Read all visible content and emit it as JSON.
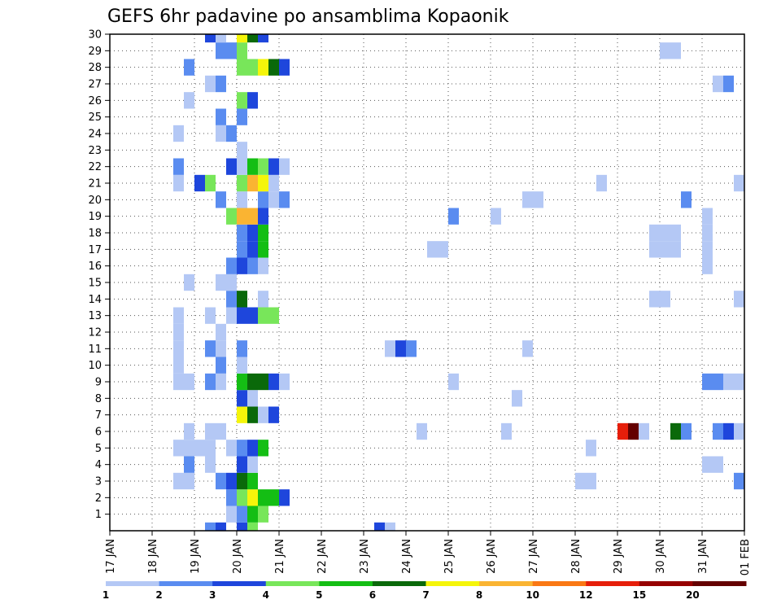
{
  "chart_data": {
    "type": "heatmap",
    "title": "GEFS 6hr padavine po ansamblima Kopaonik",
    "xlabel": "",
    "ylabel": "",
    "x_unit": "6-hour steps",
    "x_range": [
      0,
      60
    ],
    "x_ticks": [
      {
        "label": "17 JAN",
        "x": 0
      },
      {
        "label": "18 JAN",
        "x": 4
      },
      {
        "label": "19 JAN",
        "x": 8
      },
      {
        "label": "20 JAN",
        "x": 12
      },
      {
        "label": "21 JAN",
        "x": 16
      },
      {
        "label": "22 JAN",
        "x": 20
      },
      {
        "label": "23 JAN",
        "x": 24
      },
      {
        "label": "24 JAN",
        "x": 28
      },
      {
        "label": "25 JAN",
        "x": 32
      },
      {
        "label": "26 JAN",
        "x": 36
      },
      {
        "label": "27 JAN",
        "x": 40
      },
      {
        "label": "28 JAN",
        "x": 44
      },
      {
        "label": "29 JAN",
        "x": 48
      },
      {
        "label": "30 JAN",
        "x": 52
      },
      {
        "label": "31 JAN",
        "x": 56
      },
      {
        "label": "01 FEB",
        "x": 60
      }
    ],
    "y_ticks": [
      "1",
      "2",
      "3",
      "4",
      "5",
      "6",
      "7",
      "8",
      "9",
      "10",
      "11",
      "12",
      "13",
      "14",
      "15",
      "16",
      "17",
      "18",
      "19",
      "20",
      "21",
      "22",
      "23",
      "24",
      "25",
      "26",
      "27",
      "28",
      "29",
      "30"
    ],
    "y_range": [
      0,
      30
    ],
    "grid": true,
    "colorbar": {
      "labels": [
        "1",
        "2",
        "3",
        "4",
        "5",
        "6",
        "7",
        "8",
        "10",
        "12",
        "15",
        "20"
      ],
      "colors": [
        "#b4c8f5",
        "#5a8cf0",
        "#1e46dc",
        "#78e65a",
        "#14be14",
        "#0a690a",
        "#f5f50a",
        "#fab432",
        "#fa7814",
        "#e61e0a",
        "#960000",
        "#640000"
      ]
    },
    "cells": [
      [
        9,
        0,
        2
      ],
      [
        10,
        0,
        3
      ],
      [
        12,
        0,
        3
      ],
      [
        13,
        0,
        4
      ],
      [
        25,
        0,
        3
      ],
      [
        26,
        0,
        1
      ],
      [
        11,
        1,
        1
      ],
      [
        12,
        1,
        2
      ],
      [
        13,
        1,
        5
      ],
      [
        14,
        1,
        4
      ],
      [
        11,
        2,
        2
      ],
      [
        12,
        2,
        4
      ],
      [
        13,
        2,
        7
      ],
      [
        14,
        2,
        5
      ],
      [
        15,
        2,
        5
      ],
      [
        16,
        2,
        3
      ],
      [
        6,
        3,
        1
      ],
      [
        7,
        3,
        1
      ],
      [
        10,
        3,
        2
      ],
      [
        11,
        3,
        3
      ],
      [
        12,
        3,
        6
      ],
      [
        13,
        3,
        5
      ],
      [
        44,
        3,
        1
      ],
      [
        45,
        3,
        1
      ],
      [
        59,
        3,
        2
      ],
      [
        7,
        4,
        2
      ],
      [
        9,
        4,
        1
      ],
      [
        12,
        4,
        3
      ],
      [
        13,
        4,
        1
      ],
      [
        56,
        4,
        1
      ],
      [
        57,
        4,
        1
      ],
      [
        6,
        5,
        1
      ],
      [
        7,
        5,
        1
      ],
      [
        8,
        5,
        1
      ],
      [
        9,
        5,
        1
      ],
      [
        11,
        5,
        1
      ],
      [
        12,
        5,
        2
      ],
      [
        13,
        5,
        3
      ],
      [
        14,
        5,
        5
      ],
      [
        45,
        5,
        1
      ],
      [
        7,
        6,
        1
      ],
      [
        9,
        6,
        1
      ],
      [
        10,
        6,
        1
      ],
      [
        29,
        6,
        1
      ],
      [
        37,
        6,
        1
      ],
      [
        48,
        6,
        10
      ],
      [
        49,
        6,
        12
      ],
      [
        50,
        6,
        1
      ],
      [
        53,
        6,
        6
      ],
      [
        54,
        6,
        2
      ],
      [
        57,
        6,
        2
      ],
      [
        58,
        6,
        3
      ],
      [
        59,
        6,
        1
      ],
      [
        12,
        7,
        7
      ],
      [
        13,
        7,
        6
      ],
      [
        14,
        7,
        1
      ],
      [
        15,
        7,
        3
      ],
      [
        12,
        8,
        3
      ],
      [
        13,
        8,
        1
      ],
      [
        38,
        8,
        1
      ],
      [
        6,
        9,
        1
      ],
      [
        7,
        9,
        1
      ],
      [
        9,
        9,
        2
      ],
      [
        10,
        9,
        1
      ],
      [
        12,
        9,
        5
      ],
      [
        13,
        9,
        6
      ],
      [
        14,
        9,
        6
      ],
      [
        15,
        9,
        3
      ],
      [
        16,
        9,
        1
      ],
      [
        32,
        9,
        1
      ],
      [
        56,
        9,
        2
      ],
      [
        57,
        9,
        2
      ],
      [
        58,
        9,
        1
      ],
      [
        59,
        9,
        1
      ],
      [
        6,
        10,
        1
      ],
      [
        10,
        10,
        2
      ],
      [
        12,
        10,
        1
      ],
      [
        6,
        11,
        1
      ],
      [
        9,
        11,
        2
      ],
      [
        10,
        11,
        1
      ],
      [
        12,
        11,
        2
      ],
      [
        26,
        11,
        1
      ],
      [
        27,
        11,
        3
      ],
      [
        28,
        11,
        2
      ],
      [
        39,
        11,
        1
      ],
      [
        6,
        12,
        1
      ],
      [
        10,
        12,
        1
      ],
      [
        6,
        13,
        1
      ],
      [
        9,
        13,
        1
      ],
      [
        11,
        13,
        1
      ],
      [
        12,
        13,
        3
      ],
      [
        13,
        13,
        3
      ],
      [
        14,
        13,
        4
      ],
      [
        15,
        13,
        4
      ],
      [
        11,
        14,
        2
      ],
      [
        12,
        14,
        6
      ],
      [
        14,
        14,
        1
      ],
      [
        51,
        14,
        1
      ],
      [
        52,
        14,
        1
      ],
      [
        59,
        14,
        1
      ],
      [
        7,
        15,
        1
      ],
      [
        10,
        15,
        1
      ],
      [
        11,
        15,
        1
      ],
      [
        11,
        16,
        2
      ],
      [
        12,
        16,
        3
      ],
      [
        13,
        16,
        2
      ],
      [
        14,
        16,
        1
      ],
      [
        56,
        16,
        1
      ],
      [
        12,
        17,
        2
      ],
      [
        13,
        17,
        3
      ],
      [
        14,
        17,
        5
      ],
      [
        30,
        17,
        1
      ],
      [
        31,
        17,
        1
      ],
      [
        51,
        17,
        1
      ],
      [
        52,
        17,
        1
      ],
      [
        53,
        17,
        1
      ],
      [
        56,
        17,
        1
      ],
      [
        12,
        18,
        2
      ],
      [
        13,
        18,
        3
      ],
      [
        14,
        18,
        5
      ],
      [
        51,
        18,
        1
      ],
      [
        52,
        18,
        1
      ],
      [
        53,
        18,
        1
      ],
      [
        56,
        18,
        1
      ],
      [
        11,
        19,
        4
      ],
      [
        12,
        19,
        8
      ],
      [
        13,
        19,
        8
      ],
      [
        14,
        19,
        3
      ],
      [
        32,
        19,
        2
      ],
      [
        36,
        19,
        1
      ],
      [
        56,
        19,
        1
      ],
      [
        10,
        20,
        2
      ],
      [
        12,
        20,
        1
      ],
      [
        14,
        20,
        2
      ],
      [
        15,
        20,
        1
      ],
      [
        16,
        20,
        2
      ],
      [
        39,
        20,
        1
      ],
      [
        40,
        20,
        1
      ],
      [
        54,
        20,
        2
      ],
      [
        6,
        21,
        1
      ],
      [
        8,
        21,
        3
      ],
      [
        9,
        21,
        4
      ],
      [
        12,
        21,
        4
      ],
      [
        13,
        21,
        8
      ],
      [
        14,
        21,
        7
      ],
      [
        15,
        21,
        1
      ],
      [
        46,
        21,
        1
      ],
      [
        59,
        21,
        1
      ],
      [
        6,
        22,
        2
      ],
      [
        11,
        22,
        3
      ],
      [
        12,
        22,
        1
      ],
      [
        13,
        22,
        5
      ],
      [
        14,
        22,
        4
      ],
      [
        15,
        22,
        3
      ],
      [
        16,
        22,
        1
      ],
      [
        12,
        23,
        1
      ],
      [
        6,
        24,
        1
      ],
      [
        10,
        24,
        1
      ],
      [
        11,
        24,
        2
      ],
      [
        10,
        25,
        2
      ],
      [
        12,
        25,
        2
      ],
      [
        7,
        26,
        1
      ],
      [
        12,
        26,
        4
      ],
      [
        13,
        26,
        3
      ],
      [
        9,
        27,
        1
      ],
      [
        10,
        27,
        2
      ],
      [
        57,
        27,
        1
      ],
      [
        58,
        27,
        2
      ],
      [
        7,
        28,
        2
      ],
      [
        12,
        28,
        4
      ],
      [
        13,
        28,
        4
      ],
      [
        14,
        28,
        7
      ],
      [
        15,
        28,
        6
      ],
      [
        16,
        28,
        3
      ],
      [
        60,
        28,
        2
      ],
      [
        10,
        29,
        2
      ],
      [
        11,
        29,
        2
      ],
      [
        12,
        29,
        4
      ],
      [
        52,
        29,
        1
      ],
      [
        53,
        29,
        1
      ],
      [
        9,
        30,
        3
      ],
      [
        10,
        30,
        1
      ],
      [
        12,
        30,
        7
      ],
      [
        13,
        30,
        6
      ],
      [
        14,
        30,
        3
      ]
    ]
  }
}
